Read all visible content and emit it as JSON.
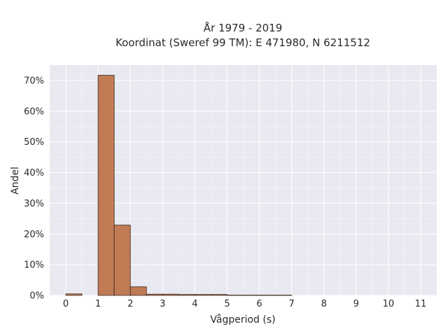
{
  "chart_data": {
    "type": "bar",
    "title": "År 1979 - 2019",
    "subtitle": "Koordinat (Sweref 99 TM): E 471980, N 6211512",
    "xlabel": "Vågperiod (s)",
    "ylabel": "Andel",
    "xlim": [
      -0.5,
      11.5
    ],
    "ylim": [
      0,
      0.75
    ],
    "x_ticks": [
      0,
      1,
      2,
      3,
      4,
      5,
      6,
      7,
      8,
      9,
      10,
      11
    ],
    "y_ticks": [
      0,
      0.1,
      0.2,
      0.3,
      0.4,
      0.5,
      0.6,
      0.7
    ],
    "y_tick_labels": [
      "0%",
      "10%",
      "20%",
      "30%",
      "40%",
      "50%",
      "60%",
      "70%"
    ],
    "grid": true,
    "bar_color": "#c07b55",
    "bar_edge_color": "#3a2a1f",
    "bin_width": 0.5,
    "bins": [
      {
        "x0": 0.0,
        "value": 0.005
      },
      {
        "x0": 1.0,
        "value": 0.717
      },
      {
        "x0": 1.5,
        "value": 0.229
      },
      {
        "x0": 2.0,
        "value": 0.028
      },
      {
        "x0": 2.5,
        "value": 0.004
      },
      {
        "x0": 3.0,
        "value": 0.004
      },
      {
        "x0": 3.5,
        "value": 0.003
      },
      {
        "x0": 4.0,
        "value": 0.003
      },
      {
        "x0": 4.5,
        "value": 0.003
      },
      {
        "x0": 5.0,
        "value": 0.001
      },
      {
        "x0": 5.5,
        "value": 0.001
      },
      {
        "x0": 6.0,
        "value": 0.001
      },
      {
        "x0": 6.5,
        "value": 0.001
      }
    ]
  }
}
